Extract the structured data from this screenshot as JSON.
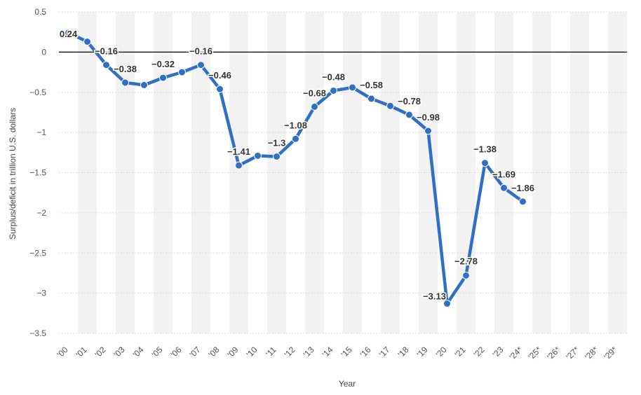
{
  "chart_data": {
    "type": "line",
    "title": "",
    "xlabel": "Year",
    "ylabel": "Surplus/deficit in trillion U.S. dollars",
    "categories": [
      "'00",
      "'01",
      "'02",
      "'03",
      "'04",
      "'05",
      "'06",
      "'07",
      "'08",
      "'09",
      "'10",
      "'11",
      "'12",
      "'13",
      "'14",
      "'15",
      "'16",
      "'17",
      "'18",
      "'19",
      "'20",
      "'21",
      "'22",
      "'23",
      "'24*",
      "'25*",
      "'26*",
      "'27*",
      "'28*",
      "'29*"
    ],
    "series": [
      {
        "values": [
          0.24,
          0.13,
          -0.16,
          -0.38,
          -0.41,
          -0.32,
          -0.25,
          -0.16,
          -0.46,
          -1.41,
          -1.29,
          -1.3,
          -1.08,
          -0.68,
          -0.48,
          -0.44,
          -0.58,
          -0.67,
          -0.78,
          -0.98,
          -3.13,
          -2.78,
          -1.38,
          -1.69,
          -1.86,
          null,
          null,
          null,
          null,
          null
        ],
        "labels": [
          "0.24",
          "",
          "-0.16",
          "-0.38",
          "",
          "-0.32",
          "",
          "-0.16",
          "-0.46",
          "-1.41",
          "",
          "-1.3",
          "-1.08",
          "-0.68",
          "-0.48",
          "",
          "-0.58",
          "",
          "-0.78",
          "-0.98",
          "-3.13",
          "-2.78",
          "-1.38",
          "-1.69",
          "-1.86",
          "",
          "",
          "",
          "",
          ""
        ],
        "color": "#2f6fc4"
      }
    ],
    "ylim": [
      -3.5,
      0.5
    ],
    "yticks": [
      0.5,
      0,
      -0.5,
      -1,
      -1.5,
      -2,
      -2.5,
      -3,
      -3.5
    ],
    "ytick_labels": [
      "0.5",
      "0",
      "−0.5",
      "−1",
      "−1.5",
      "−2",
      "−2.5",
      "−3",
      "−3.5"
    ],
    "grid": true,
    "zero_line": true,
    "colors": {
      "line": "#2f6fc4",
      "band": "#f2f2f2",
      "grid": "#dddddd",
      "zero": "#000000"
    }
  }
}
